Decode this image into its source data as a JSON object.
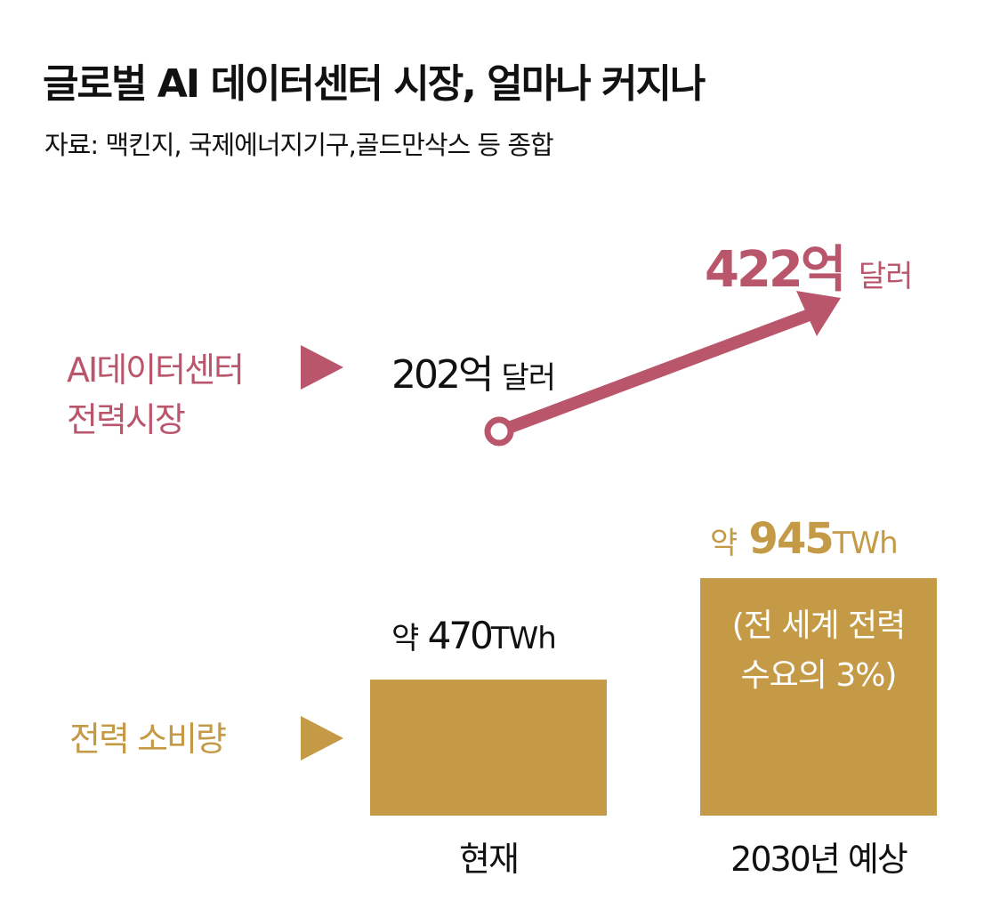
{
  "title": "글로벌 AI 데이터센터 시장, 얼마나 커지나",
  "source": "자료: 맥킨지, 국제에너지기구,골드만삭스 등 종합",
  "colors": {
    "market": "#b9566c",
    "power": "#c49a46"
  },
  "market": {
    "label_line1": "AI데이터센터",
    "label_line2": "전력시장",
    "start_value": "202억",
    "start_unit": "달러",
    "end_value": "422억",
    "end_unit": "달러"
  },
  "power": {
    "label": "전력 소비량",
    "note_line1": "(전 세계 전력",
    "note_line2": "수요의 3%)"
  },
  "chart_data": {
    "type": "bar",
    "title": "전력 소비량",
    "categories": [
      "현재",
      "2030년 예상"
    ],
    "values": [
      470,
      945
    ],
    "value_labels": [
      {
        "prefix": "약",
        "value": "470",
        "unit": "TWh"
      },
      {
        "prefix": "약",
        "value": "945",
        "unit": "TWh"
      }
    ],
    "unit": "TWh",
    "ylim": [
      0,
      945
    ],
    "market_series": {
      "name": "AI데이터센터 전력시장",
      "unit": "억 달러",
      "values": [
        202,
        422
      ]
    }
  }
}
